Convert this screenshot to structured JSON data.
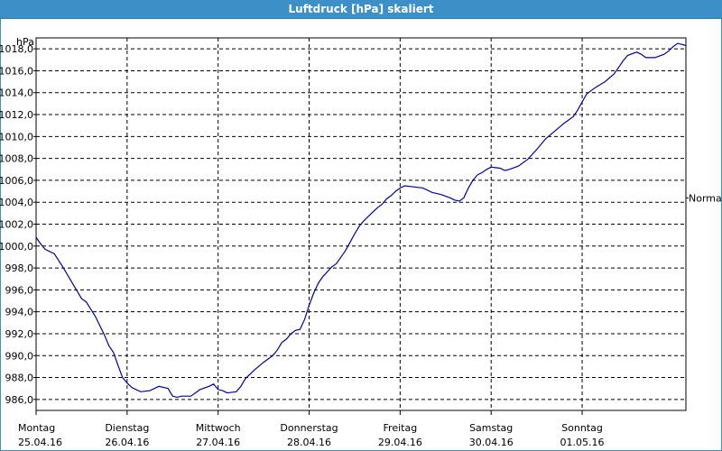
{
  "window": {
    "title": "Luftdruck [hPa] skaliert"
  },
  "colors": {
    "line": "#0000aa",
    "grid": "#000000",
    "titlebar": "#3d8fc8"
  },
  "chart_data": {
    "type": "line",
    "title": "Luftdruck [hPa] skaliert",
    "ylabel": "hPa",
    "ylim": [
      985.0,
      1019.0
    ],
    "yticks": [
      "986,0",
      "988,0",
      "990,0",
      "992,0",
      "994,0",
      "996,0",
      "998,0",
      "1000,0",
      "1002,0",
      "1004,0",
      "1006,0",
      "1008,0",
      "1010,0",
      "1012,0",
      "1014,0",
      "1016,0",
      "1018,0"
    ],
    "xlim": [
      0,
      7.14
    ],
    "days": [
      {
        "day": "Montag",
        "date": "25.04.16"
      },
      {
        "day": "Dienstag",
        "date": "26.04.16"
      },
      {
        "day": "Mittwoch",
        "date": "27.04.16"
      },
      {
        "day": "Donnerstag",
        "date": "28.04.16"
      },
      {
        "day": "Freitag",
        "date": "29.04.16"
      },
      {
        "day": "Samstag",
        "date": "30.04.16"
      },
      {
        "day": "Sonntag",
        "date": "01.05.16"
      }
    ],
    "reference": {
      "label": "Normal",
      "value": 1004.4
    },
    "grid": true,
    "series": [
      {
        "values": [
          [
            0.0,
            1000.8
          ],
          [
            0.05,
            1000.2
          ],
          [
            0.1,
            999.7
          ],
          [
            0.2,
            999.3
          ],
          [
            0.3,
            998.0
          ],
          [
            0.4,
            996.6
          ],
          [
            0.5,
            995.2
          ],
          [
            0.55,
            994.9
          ],
          [
            0.65,
            993.6
          ],
          [
            0.75,
            991.9
          ],
          [
            0.8,
            990.9
          ],
          [
            0.85,
            990.3
          ],
          [
            0.9,
            989.1
          ],
          [
            0.95,
            988.0
          ],
          [
            1.0,
            987.5
          ],
          [
            1.05,
            987.1
          ],
          [
            1.1,
            986.9
          ],
          [
            1.15,
            986.7
          ],
          [
            1.25,
            986.8
          ],
          [
            1.35,
            987.2
          ],
          [
            1.45,
            987.0
          ],
          [
            1.5,
            986.3
          ],
          [
            1.55,
            986.2
          ],
          [
            1.6,
            986.3
          ],
          [
            1.7,
            986.3
          ],
          [
            1.75,
            986.6
          ],
          [
            1.8,
            986.9
          ],
          [
            1.9,
            987.2
          ],
          [
            1.95,
            987.4
          ],
          [
            2.0,
            986.9
          ],
          [
            2.05,
            986.8
          ],
          [
            2.1,
            986.6
          ],
          [
            2.2,
            986.7
          ],
          [
            2.25,
            987.2
          ],
          [
            2.3,
            987.9
          ],
          [
            2.4,
            988.7
          ],
          [
            2.5,
            989.4
          ],
          [
            2.6,
            990.0
          ],
          [
            2.65,
            990.5
          ],
          [
            2.7,
            991.2
          ],
          [
            2.75,
            991.5
          ],
          [
            2.8,
            992.0
          ],
          [
            2.85,
            992.3
          ],
          [
            2.9,
            992.4
          ],
          [
            2.95,
            993.3
          ],
          [
            3.0,
            994.6
          ],
          [
            3.05,
            995.7
          ],
          [
            3.1,
            996.6
          ],
          [
            3.15,
            997.2
          ],
          [
            3.25,
            998.1
          ],
          [
            3.3,
            998.4
          ],
          [
            3.4,
            999.6
          ],
          [
            3.5,
            1001.1
          ],
          [
            3.55,
            1001.8
          ],
          [
            3.6,
            1002.3
          ],
          [
            3.7,
            1003.1
          ],
          [
            3.75,
            1003.5
          ],
          [
            3.8,
            1003.8
          ],
          [
            3.85,
            1004.3
          ],
          [
            3.9,
            1004.6
          ],
          [
            3.95,
            1005.0
          ],
          [
            4.0,
            1005.3
          ],
          [
            4.05,
            1005.5
          ],
          [
            4.15,
            1005.4
          ],
          [
            4.25,
            1005.3
          ],
          [
            4.35,
            1004.9
          ],
          [
            4.45,
            1004.7
          ],
          [
            4.55,
            1004.4
          ],
          [
            4.6,
            1004.2
          ],
          [
            4.65,
            1004.1
          ],
          [
            4.7,
            1004.4
          ],
          [
            4.75,
            1005.3
          ],
          [
            4.8,
            1006.0
          ],
          [
            4.85,
            1006.5
          ],
          [
            4.9,
            1006.7
          ],
          [
            4.95,
            1007.0
          ],
          [
            5.0,
            1007.2
          ],
          [
            5.1,
            1007.1
          ],
          [
            5.15,
            1006.9
          ],
          [
            5.2,
            1007.0
          ],
          [
            5.3,
            1007.3
          ],
          [
            5.4,
            1007.9
          ],
          [
            5.5,
            1008.8
          ],
          [
            5.6,
            1009.8
          ],
          [
            5.7,
            1010.5
          ],
          [
            5.8,
            1011.2
          ],
          [
            5.9,
            1011.8
          ],
          [
            5.95,
            1012.4
          ],
          [
            6.05,
            1013.9
          ],
          [
            6.15,
            1014.5
          ],
          [
            6.25,
            1015.0
          ],
          [
            6.35,
            1015.7
          ],
          [
            6.4,
            1016.3
          ],
          [
            6.45,
            1016.9
          ],
          [
            6.5,
            1017.4
          ],
          [
            6.6,
            1017.7
          ],
          [
            6.65,
            1017.5
          ],
          [
            6.7,
            1017.2
          ],
          [
            6.8,
            1017.2
          ],
          [
            6.9,
            1017.5
          ],
          [
            6.95,
            1017.8
          ],
          [
            7.0,
            1018.2
          ],
          [
            7.05,
            1018.5
          ],
          [
            7.1,
            1018.4
          ],
          [
            7.14,
            1018.3
          ]
        ]
      }
    ]
  }
}
